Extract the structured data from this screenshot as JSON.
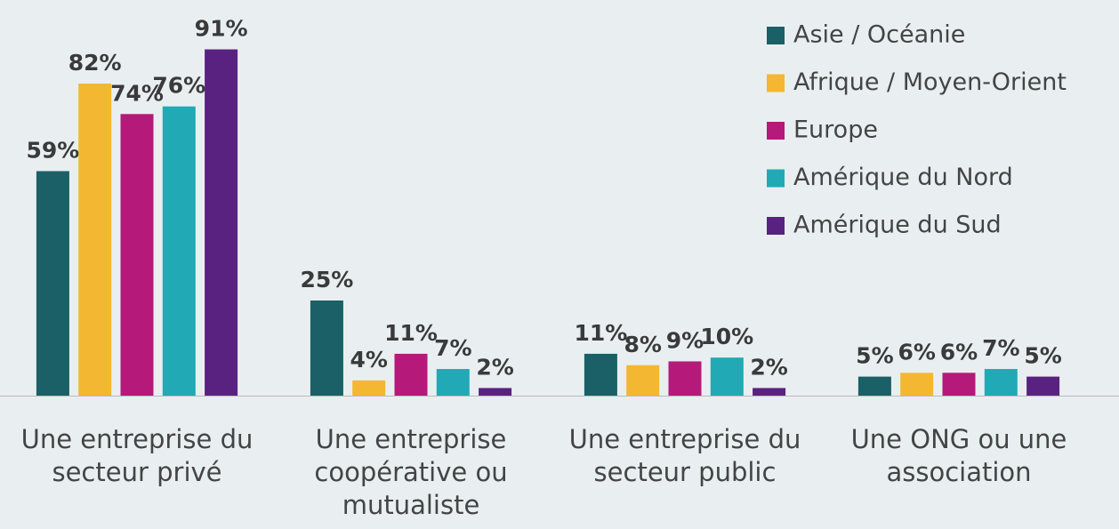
{
  "chart_data": {
    "type": "bar",
    "categories": [
      "Une entreprise du secteur privé",
      "Une entreprise coopérative ou mutualiste",
      "Une entreprise du secteur public",
      "Une ONG ou une association"
    ],
    "series": [
      {
        "name": "Asie / Océanie",
        "color": "#1a6066",
        "values": [
          59,
          25,
          11,
          5
        ],
        "value_labels": [
          "59%",
          "25%",
          "11%",
          "5%"
        ]
      },
      {
        "name": "Afrique / Moyen-Orient",
        "color": "#f4b731",
        "values": [
          82,
          4,
          8,
          6
        ],
        "value_labels": [
          "82%",
          "4%",
          "8%",
          "6%"
        ]
      },
      {
        "name": "Europe",
        "color": "#b5197a",
        "values": [
          74,
          11,
          9,
          6
        ],
        "value_labels": [
          "74%",
          "11%",
          "9%",
          "6%"
        ]
      },
      {
        "name": "Amérique du Nord",
        "color": "#21a9b5",
        "values": [
          76,
          7,
          10,
          7
        ],
        "value_labels": [
          "76%",
          "7%",
          "10%",
          "7%"
        ]
      },
      {
        "name": "Amérique du Sud",
        "color": "#5a2280",
        "values": [
          91,
          2,
          2,
          5
        ],
        "value_labels": [
          "91%",
          "2%",
          "2%",
          "5%"
        ]
      }
    ],
    "ylim": [
      0,
      100
    ],
    "legend": "top-right"
  }
}
